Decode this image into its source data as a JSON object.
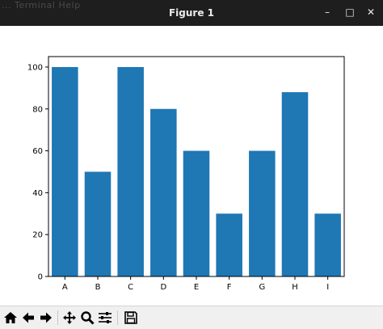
{
  "window": {
    "title": "Figure 1",
    "background_menu": "...  Terminal   Help",
    "controls": [
      {
        "name": "minimize-button",
        "icon": "minimize-icon",
        "glyph": "–"
      },
      {
        "name": "maximize-button",
        "icon": "maximize-icon",
        "glyph": "□"
      },
      {
        "name": "close-button",
        "icon": "close-icon",
        "glyph": "✕"
      }
    ]
  },
  "toolbar": {
    "buttons": [
      {
        "name": "home-button",
        "icon": "home-icon"
      },
      {
        "name": "back-button",
        "icon": "back-arrow-icon"
      },
      {
        "name": "forward-button",
        "icon": "forward-arrow-icon"
      },
      {
        "name": "pan-button",
        "icon": "pan-move-icon"
      },
      {
        "name": "zoom-button",
        "icon": "zoom-magnifier-icon"
      },
      {
        "name": "configure-subplots-button",
        "icon": "sliders-icon"
      },
      {
        "name": "save-button",
        "icon": "save-floppy-icon"
      }
    ]
  },
  "chart_data": {
    "type": "bar",
    "categories": [
      "A",
      "B",
      "C",
      "D",
      "E",
      "F",
      "G",
      "H",
      "I"
    ],
    "values": [
      100,
      50,
      100,
      80,
      60,
      30,
      60,
      88,
      30
    ],
    "title": "",
    "xlabel": "",
    "ylabel": "",
    "ylim": [
      0,
      105
    ],
    "yticks": [
      0,
      20,
      40,
      60,
      80,
      100
    ],
    "grid": false,
    "colors": {
      "bar": "#1f77b4",
      "axis": "#000000"
    }
  }
}
